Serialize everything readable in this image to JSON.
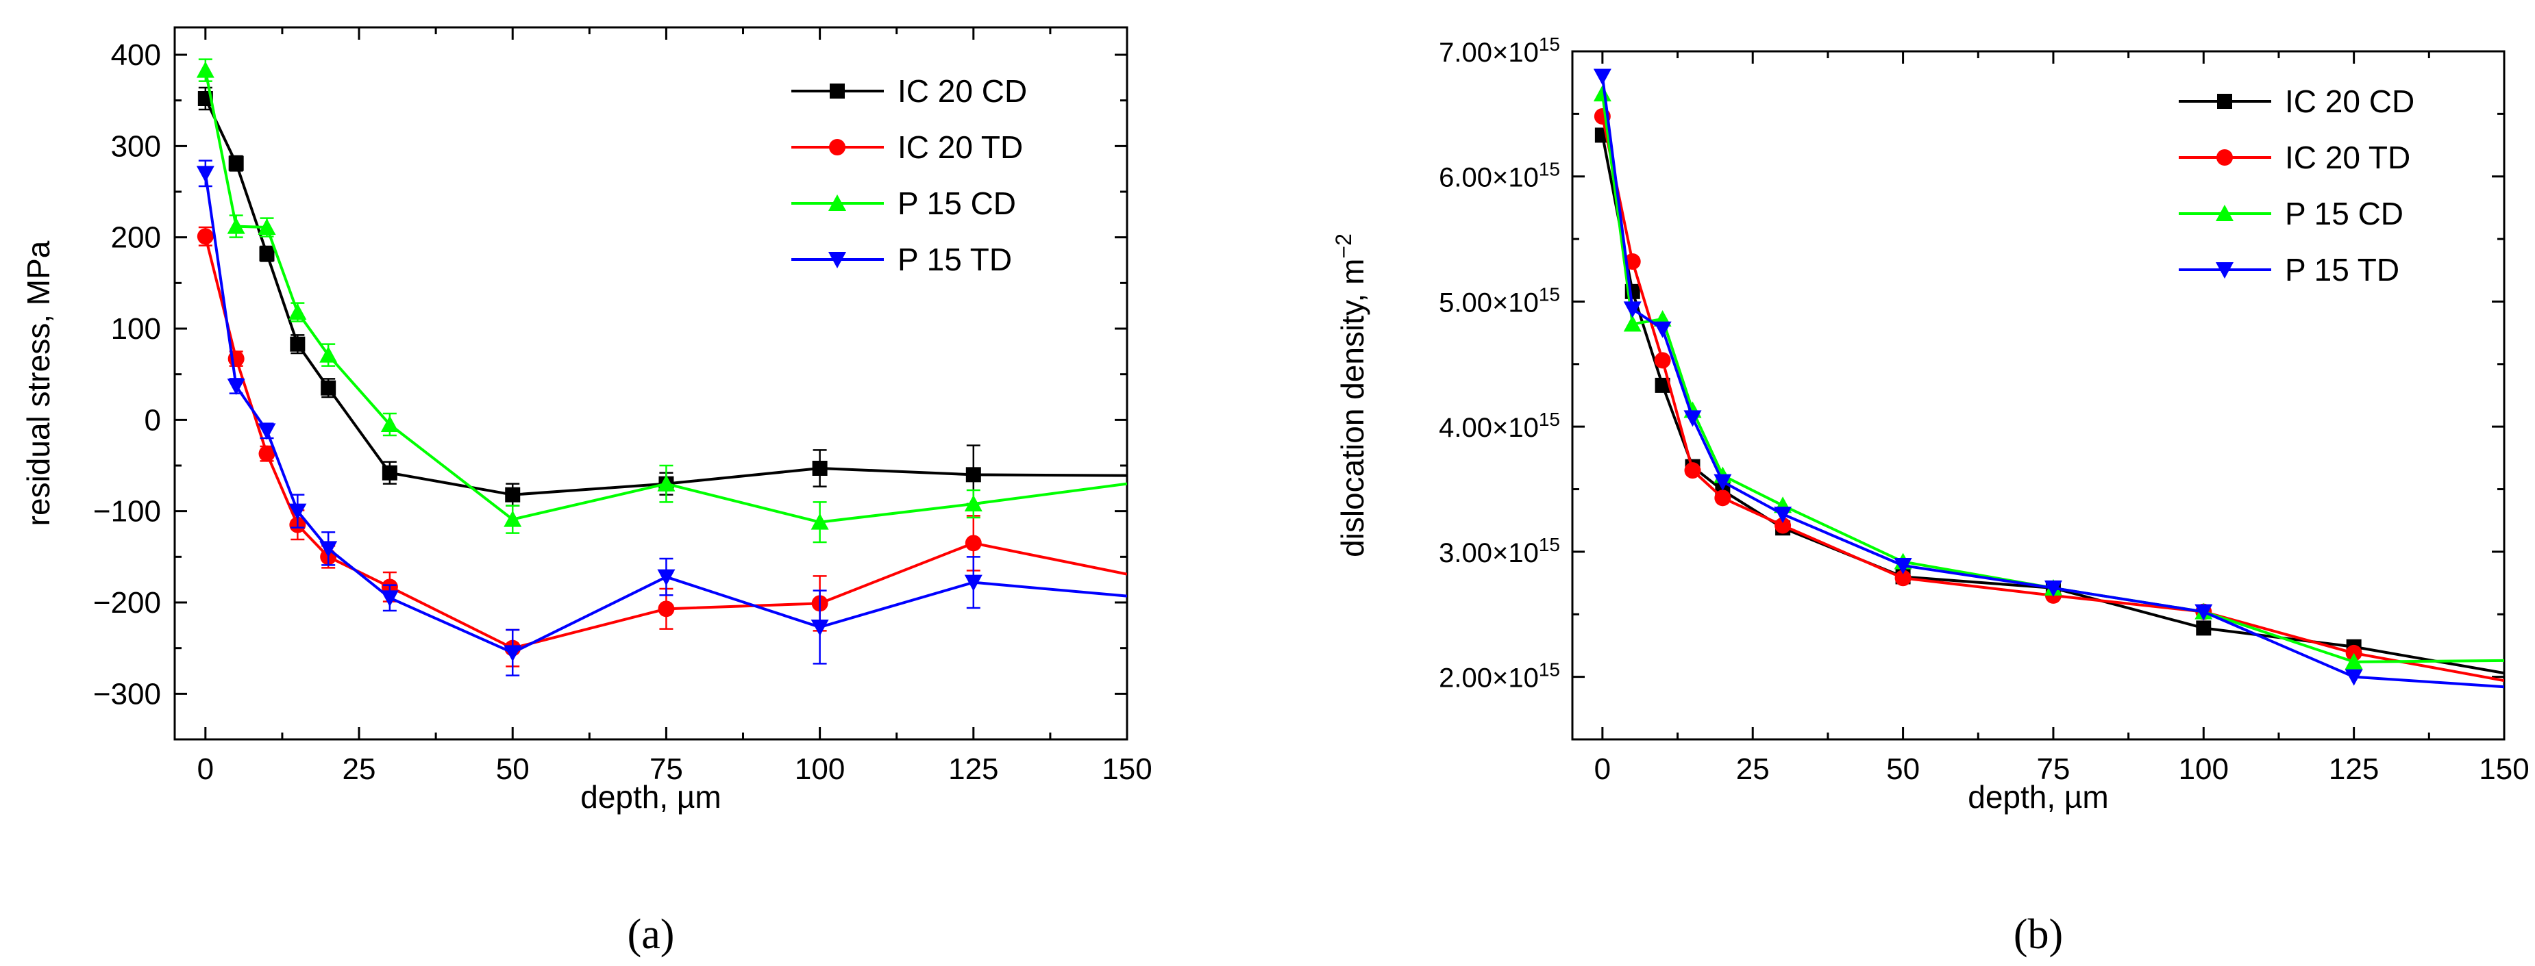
{
  "chart_data": [
    {
      "panel": "a",
      "panel_label": "(a)",
      "type": "line",
      "xlabel": "depth, µm",
      "ylabel": "residual stress, MPa",
      "xlim": [
        -5,
        150
      ],
      "ylim": [
        -350,
        430
      ],
      "xticks": [
        0,
        25,
        50,
        75,
        100,
        125,
        150
      ],
      "yticks": [
        -300,
        -200,
        -100,
        0,
        100,
        200,
        300,
        400
      ],
      "ytick_labels": [
        "−300",
        "−200",
        "−100",
        "0",
        "100",
        "200",
        "300",
        "400"
      ],
      "legend_position": "top-right",
      "error_bars": true,
      "series": [
        {
          "name": "IC 20 CD",
          "color": "#000000",
          "marker": "square",
          "x": [
            0,
            5,
            10,
            15,
            20,
            30,
            50,
            75,
            100,
            125,
            150
          ],
          "y": [
            352,
            281,
            182,
            83,
            35,
            -58,
            -82,
            -70,
            -53,
            -60,
            -61
          ],
          "err": [
            12,
            8,
            8,
            10,
            10,
            12,
            12,
            12,
            20,
            32,
            0
          ]
        },
        {
          "name": "IC 20 TD",
          "color": "#ff0000",
          "marker": "circle",
          "x": [
            0,
            5,
            10,
            15,
            20,
            30,
            50,
            75,
            100,
            125,
            150
          ],
          "y": [
            201,
            67,
            -37,
            -115,
            -150,
            -183,
            -250,
            -207,
            -201,
            -135,
            -169
          ],
          "err": [
            10,
            8,
            8,
            16,
            12,
            16,
            20,
            22,
            30,
            30,
            0
          ]
        },
        {
          "name": "P 15 CD",
          "color": "#00ff00",
          "marker": "triangle-up",
          "x": [
            0,
            5,
            10,
            15,
            20,
            30,
            50,
            75,
            100,
            125,
            150
          ],
          "y": [
            383,
            212,
            211,
            118,
            71,
            -5,
            -109,
            -70,
            -112,
            -92,
            -70
          ],
          "err": [
            12,
            12,
            10,
            10,
            12,
            12,
            15,
            20,
            22,
            15,
            0
          ]
        },
        {
          "name": "P 15 TD",
          "color": "#0000ff",
          "marker": "triangle-down",
          "x": [
            0,
            5,
            10,
            15,
            20,
            30,
            50,
            75,
            100,
            125,
            150
          ],
          "y": [
            270,
            37,
            -12,
            -100,
            -141,
            -195,
            -255,
            -172,
            -227,
            -178,
            -193
          ],
          "err": [
            14,
            8,
            8,
            18,
            18,
            14,
            25,
            20,
            40,
            28,
            0
          ]
        }
      ]
    },
    {
      "panel": "b",
      "panel_label": "(b)",
      "type": "line",
      "xlabel": "depth, µm",
      "ylabel": "dislocation density, m",
      "ylabel_superscript": "−2",
      "xlim": [
        -5,
        150
      ],
      "ylim": [
        1500000000000000.0,
        7000000000000000.0
      ],
      "xticks": [
        0,
        25,
        50,
        75,
        100,
        125,
        150
      ],
      "yticks": [
        2000000000000000.0,
        3000000000000000.0,
        4000000000000000.0,
        5000000000000000.0,
        6000000000000000.0,
        7000000000000000.0
      ],
      "ytick_labels": [
        "2.00×10",
        "3.00×10",
        "4.00×10",
        "5.00×10",
        "6.00×10",
        "7.00×10"
      ],
      "ytick_exponent": "15",
      "legend_position": "top-right",
      "error_bars": false,
      "series": [
        {
          "name": "IC 20 CD",
          "color": "#000000",
          "marker": "square",
          "x": [
            0,
            5,
            10,
            15,
            20,
            30,
            50,
            75,
            100,
            125,
            150
          ],
          "y": [
            6330000000000000.0,
            5080000000000000.0,
            4330000000000000.0,
            3680000000000000.0,
            3490000000000000.0,
            3190000000000000.0,
            2800000000000000.0,
            2710000000000000.0,
            2390000000000000.0,
            2240000000000000.0,
            2030000000000000.0
          ]
        },
        {
          "name": "IC 20 TD",
          "color": "#ff0000",
          "marker": "circle",
          "x": [
            0,
            5,
            10,
            15,
            20,
            30,
            50,
            75,
            100,
            125,
            150
          ],
          "y": [
            6480000000000000.0,
            5320000000000000.0,
            4530000000000000.0,
            3650000000000000.0,
            3430000000000000.0,
            3210000000000000.0,
            2790000000000000.0,
            2650000000000000.0,
            2520000000000000.0,
            2190000000000000.0,
            1970000000000000.0
          ]
        },
        {
          "name": "P 15 CD",
          "color": "#00ff00",
          "marker": "triangle-up",
          "x": [
            0,
            5,
            10,
            15,
            20,
            30,
            50,
            75,
            100,
            125,
            150
          ],
          "y": [
            6660000000000000.0,
            4820000000000000.0,
            4860000000000000.0,
            4130000000000000.0,
            3610000000000000.0,
            3370000000000000.0,
            2920000000000000.0,
            2710000000000000.0,
            2520000000000000.0,
            2120000000000000.0,
            2130000000000000.0
          ]
        },
        {
          "name": "P 15 TD",
          "color": "#0000ff",
          "marker": "triangle-down",
          "x": [
            0,
            5,
            10,
            15,
            20,
            30,
            50,
            75,
            100,
            125,
            150
          ],
          "y": [
            6800000000000000.0,
            4940000000000000.0,
            4780000000000000.0,
            4070000000000000.0,
            3560000000000000.0,
            3300000000000000.0,
            2890000000000000.0,
            2710000000000000.0,
            2520000000000000.0,
            2000000000000000.0,
            1920000000000000.0
          ]
        }
      ]
    }
  ]
}
